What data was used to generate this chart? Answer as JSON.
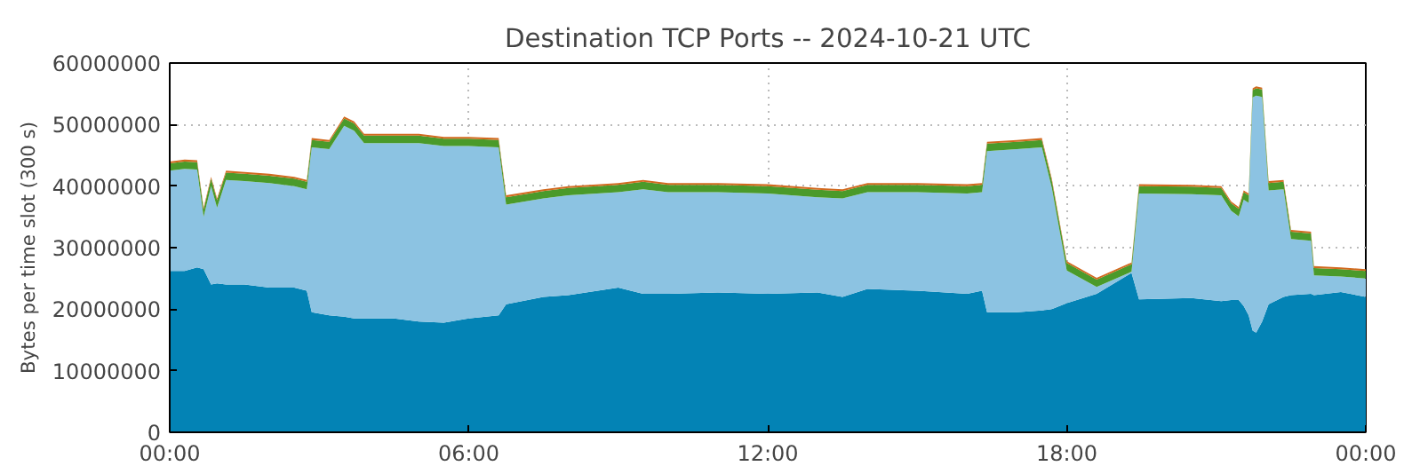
{
  "chart_data": {
    "type": "area",
    "stacked": true,
    "title": "Destination TCP Ports -- 2024-10-21 UTC",
    "ylabel": "Bytes per time slot (300 s)",
    "x": [
      0,
      0.3,
      0.55,
      0.68,
      0.83,
      0.95,
      1.13,
      1.5,
      2.0,
      2.5,
      2.75,
      2.85,
      3.2,
      3.5,
      3.7,
      3.9,
      4.5,
      5.0,
      5.5,
      6.0,
      6.6,
      6.75,
      7.5,
      8.0,
      9.0,
      9.5,
      10,
      11,
      12,
      13,
      13.5,
      14,
      15,
      16,
      16.3,
      16.4,
      17,
      17.5,
      17.7,
      18,
      18.6,
      19.3,
      19.45,
      20.5,
      21.1,
      21.3,
      21.45,
      21.55,
      21.65,
      21.73,
      21.8,
      21.92,
      22.05,
      22.35,
      22.5,
      22.9,
      22.96,
      23.5,
      24
    ],
    "series": [
      {
        "color": "#0383b5",
        "values": [
          26200000,
          26200000,
          26800000,
          26500000,
          24000000,
          24200000,
          24000000,
          24000000,
          23500000,
          23500000,
          23000000,
          19500000,
          19000000,
          18800000,
          18500000,
          18500000,
          18500000,
          18000000,
          17800000,
          18500000,
          19000000,
          20800000,
          22000000,
          22300000,
          23500000,
          22500000,
          22500000,
          22700000,
          22500000,
          22700000,
          22000000,
          23300000,
          23000000,
          22500000,
          23000000,
          19500000,
          19500000,
          19800000,
          20000000,
          21000000,
          22500000,
          25900000,
          21600000,
          21800000,
          21300000,
          21500000,
          21500000,
          20500000,
          19000000,
          16500000,
          16200000,
          18000000,
          20800000,
          22000000,
          22300000,
          22500000,
          22300000,
          22800000,
          22000000
        ]
      },
      {
        "color": "#8cc3e2",
        "values": [
          16300000,
          16600000,
          15900000,
          8500000,
          16000000,
          12300000,
          17000000,
          16800000,
          17000000,
          16500000,
          16500000,
          26800000,
          27000000,
          31000000,
          30500000,
          28500000,
          28500000,
          29000000,
          28700000,
          28000000,
          27300000,
          16200000,
          16000000,
          16200000,
          15500000,
          17000000,
          16500000,
          16300000,
          16300000,
          15500000,
          16000000,
          15700000,
          16000000,
          16300000,
          16000000,
          26200000,
          26500000,
          26500000,
          19700000,
          5300000,
          1100000,
          200000,
          17200000,
          16900000,
          17200000,
          14500000,
          13600000,
          17300000,
          18300000,
          37900000,
          38500000,
          36500000,
          18500000,
          17500000,
          9100000,
          8600000,
          3200000,
          2500000,
          3000000
        ]
      },
      {
        "color": "#4a9a2a",
        "values": [
          1200000,
          1200000,
          1200000,
          1200000,
          1200000,
          1200000,
          1200000,
          1200000,
          1200000,
          1200000,
          1200000,
          1200000,
          1200000,
          1200000,
          1200000,
          1200000,
          1200000,
          1200000,
          1200000,
          1200000,
          1200000,
          1200000,
          1200000,
          1200000,
          1200000,
          1200000,
          1200000,
          1200000,
          1200000,
          1200000,
          1200000,
          1200000,
          1200000,
          1200000,
          1200000,
          1200000,
          1200000,
          1200000,
          1200000,
          1200000,
          1200000,
          1200000,
          1200000,
          1200000,
          1200000,
          1200000,
          1200000,
          1200000,
          1200000,
          1200000,
          1200000,
          1200000,
          1200000,
          1200000,
          1200000,
          1200000,
          1200000,
          1200000,
          1200000
        ]
      },
      {
        "color": "#d2691e",
        "values": [
          300000,
          300000,
          300000,
          300000,
          300000,
          300000,
          300000,
          300000,
          300000,
          300000,
          300000,
          300000,
          300000,
          300000,
          300000,
          300000,
          300000,
          300000,
          300000,
          300000,
          300000,
          300000,
          300000,
          300000,
          300000,
          300000,
          300000,
          300000,
          300000,
          300000,
          300000,
          300000,
          300000,
          300000,
          300000,
          300000,
          300000,
          300000,
          300000,
          300000,
          300000,
          300000,
          300000,
          300000,
          300000,
          300000,
          300000,
          300000,
          300000,
          300000,
          300000,
          300000,
          300000,
          300000,
          300000,
          300000,
          300000,
          300000,
          300000
        ]
      }
    ],
    "xlim": [
      0,
      24
    ],
    "xticks": [
      {
        "value": 0,
        "label": "00:00"
      },
      {
        "value": 6,
        "label": "06:00"
      },
      {
        "value": 12,
        "label": "12:00"
      },
      {
        "value": 18,
        "label": "18:00"
      },
      {
        "value": 24,
        "label": "00:00"
      }
    ],
    "ylim": [
      0,
      60000000
    ],
    "yticks": [
      0,
      10000000,
      20000000,
      30000000,
      40000000,
      50000000,
      60000000
    ],
    "grid": true
  }
}
